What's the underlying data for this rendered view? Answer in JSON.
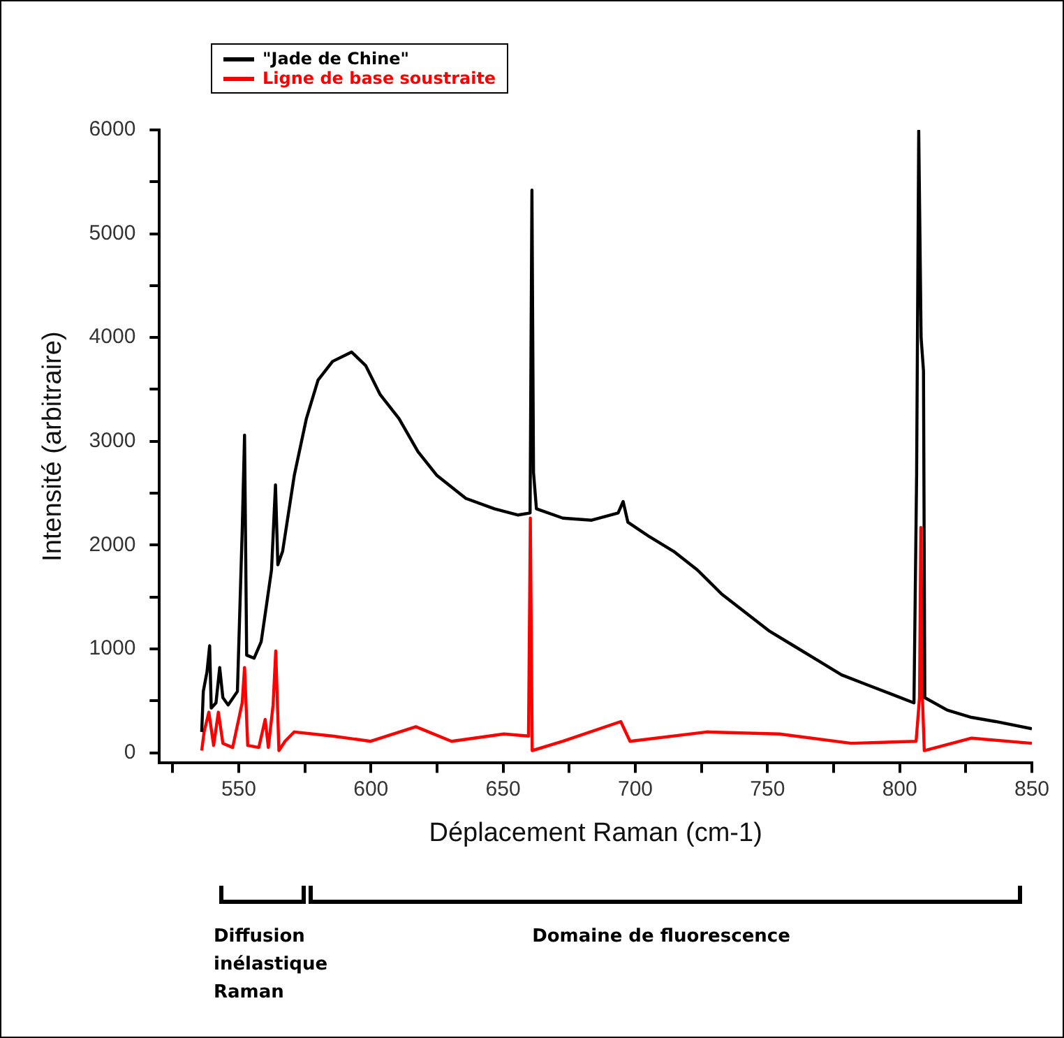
{
  "chart_data": {
    "type": "line",
    "xlabel": "Déplacement Raman (cm-1)",
    "ylabel": "Intensité (arbitraire)",
    "legend": "top left",
    "marker": "none",
    "line_style": "solid",
    "xlim": [
      520,
      850
    ],
    "xticks": [
      {
        "value": 525,
        "label": null
      },
      550,
      {
        "value": 575,
        "label": null
      },
      600,
      {
        "value": 625,
        "label": null
      },
      650,
      {
        "value": 675,
        "label": null
      },
      700,
      {
        "value": 725,
        "label": null
      },
      750,
      {
        "value": 775,
        "label": null
      },
      800,
      {
        "value": 825,
        "label": null
      },
      850
    ],
    "ylim": [
      -100,
      6000
    ],
    "yticks": [
      0,
      {
        "value": 500,
        "label": null
      },
      1000,
      {
        "value": 1500,
        "label": null
      },
      2000,
      {
        "value": 2500,
        "label": null
      },
      3000,
      {
        "value": 3500,
        "label": null
      },
      4000,
      {
        "value": 4500,
        "label": null
      },
      5000,
      {
        "value": 5500,
        "label": null
      },
      6000
    ],
    "annotations": [
      "Diffusion inélastique Raman",
      "Domaine de fluorescence"
    ],
    "series": [
      {
        "name": "\"Jade de Chine\"",
        "color": "#000000",
        "x": [
          536,
          536.6,
          538,
          539,
          539.6,
          541.4,
          542.8,
          544,
          546,
          549.5,
          551.3,
          552.2,
          553,
          555.8,
          558.5,
          560.6,
          562.4,
          563.9,
          564.8,
          566.6,
          571,
          575.6,
          580,
          585.5,
          592.7,
          598,
          603.5,
          610.6,
          617.8,
          625,
          635.9,
          646.7,
          655.7,
          660.2,
          660.9,
          661.5,
          662.6,
          672.6,
          683.5,
          693.5,
          695.4,
          697.2,
          705.4,
          714.5,
          723.5,
          732.6,
          741.7,
          750.8,
          759.9,
          769,
          778,
          787.1,
          796.3,
          805.4,
          806.4,
          807.2,
          808.1,
          809,
          809.5,
          818,
          827.2,
          836.3,
          850
        ],
        "values": [
          200,
          590,
          780,
          1030,
          430,
          480,
          820,
          530,
          460,
          590,
          2130,
          3060,
          940,
          910,
          1070,
          1440,
          1760,
          2580,
          1810,
          1940,
          2670,
          3220,
          3590,
          3770,
          3860,
          3730,
          3450,
          3220,
          2900,
          2670,
          2450,
          2350,
          2290,
          2310,
          5420,
          2700,
          2350,
          2260,
          2240,
          2310,
          2420,
          2220,
          2080,
          1940,
          1760,
          1530,
          1350,
          1170,
          1030,
          890,
          750,
          660,
          570,
          480,
          2670,
          5990,
          4000,
          3680,
          530,
          410,
          340,
          300,
          230
        ]
      },
      {
        "name": "Ligne de base soustraite",
        "color": "#ff0000",
        "x": [
          536,
          536.9,
          538.7,
          540.5,
          542.3,
          544,
          547.7,
          551.3,
          552.2,
          553.4,
          557.6,
          560,
          561.2,
          563,
          564,
          565.2,
          567.5,
          571,
          585.5,
          599.9,
          617,
          630.5,
          650.3,
          659.6,
          660.3,
          661,
          672.6,
          694.5,
          698,
          727,
          754.5,
          781.7,
          806.2,
          807.5,
          808,
          808.6,
          809.3,
          827.2,
          850
        ],
        "values": [
          20,
          200,
          390,
          70,
          390,
          90,
          50,
          480,
          820,
          70,
          50,
          320,
          50,
          460,
          980,
          20,
          110,
          200,
          160,
          110,
          250,
          110,
          180,
          160,
          2260,
          20,
          110,
          300,
          110,
          200,
          180,
          90,
          110,
          530,
          2170,
          530,
          20,
          140,
          90
        ]
      }
    ]
  }
}
